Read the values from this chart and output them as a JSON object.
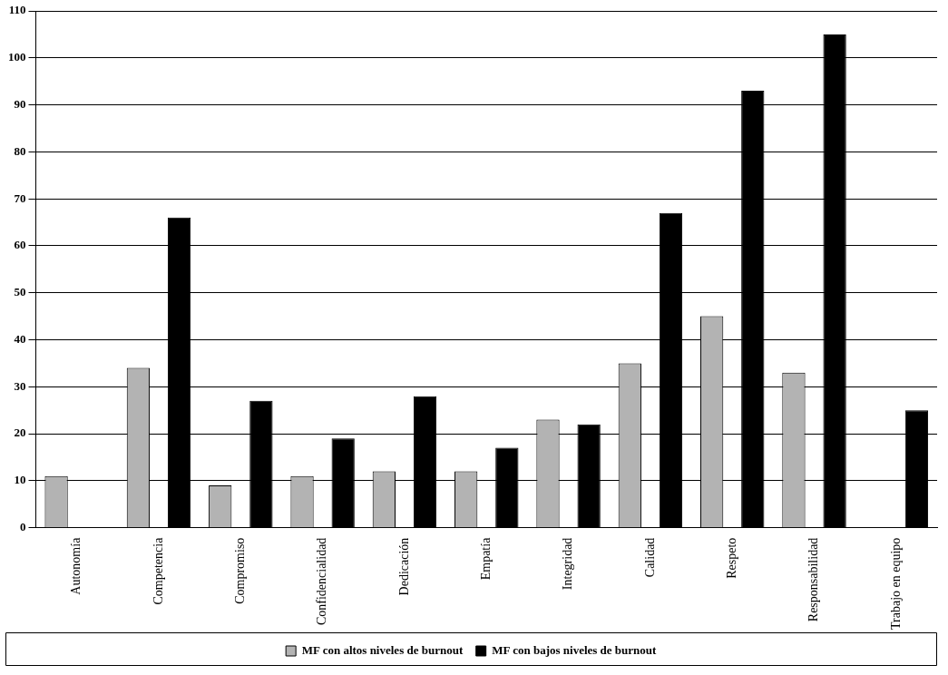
{
  "chart_data": {
    "type": "bar",
    "categories": [
      "Autonomía",
      "Competencia",
      "Compromiso",
      "Confidencialidad",
      "Dedicación",
      "Empatía",
      "Integridad",
      "Calidad",
      "Respeto",
      "Responsabilidad",
      "Trabajo en equipo"
    ],
    "series": [
      {
        "name": "MF con altos niveles de burnout",
        "color": "#b3b3b3",
        "values": [
          11,
          34,
          9,
          11,
          12,
          12,
          23,
          35,
          45,
          33,
          0
        ]
      },
      {
        "name": "MF con bajos niveles de burnout",
        "color": "#000000",
        "values": [
          0,
          66,
          27,
          19,
          28,
          17,
          22,
          67,
          93,
          105,
          25
        ]
      }
    ],
    "ylim": [
      0,
      110
    ],
    "yticks": [
      0,
      10,
      20,
      30,
      40,
      50,
      60,
      70,
      80,
      90,
      100,
      110
    ],
    "grid": "y",
    "legend": "bottom"
  }
}
